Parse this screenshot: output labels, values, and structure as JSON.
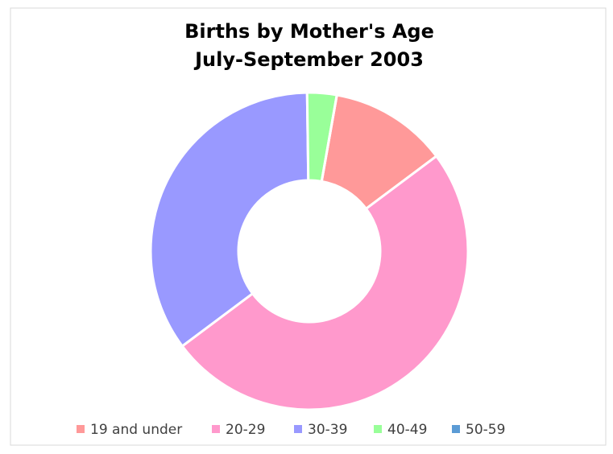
{
  "chart_data": {
    "type": "donut",
    "title": "Births by Mother's Age",
    "subtitle": "July-September 2003",
    "categories": [
      "19 and under",
      "20-29",
      "30-39",
      "40-49",
      "50-59"
    ],
    "values": [
      12,
      50,
      35,
      3,
      0
    ],
    "colors": [
      "#ff9999",
      "#ff99cc",
      "#9999ff",
      "#99ff99",
      "#5b9bd5"
    ],
    "legend": "bottom"
  }
}
